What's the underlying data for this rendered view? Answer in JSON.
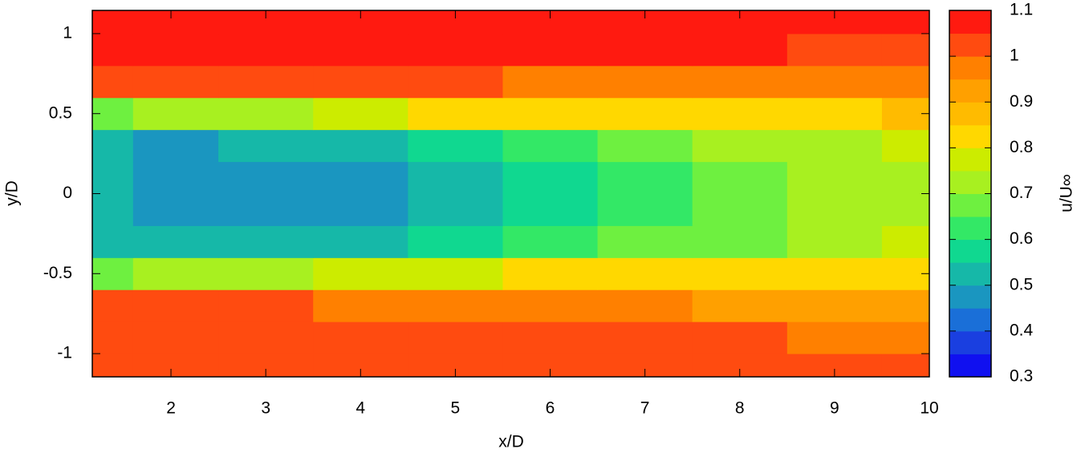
{
  "chart_data": {
    "type": "contour",
    "x_label": "x/D",
    "y_label": "y/D",
    "colorbar_label": "u/U∞",
    "x": [
      1.2,
      2,
      3,
      4,
      5,
      6,
      7,
      8,
      9,
      10
    ],
    "y": [
      -1.1,
      -0.9,
      -0.7,
      -0.5,
      -0.3,
      -0.1,
      0.1,
      0.3,
      0.5,
      0.7,
      0.9,
      1.1
    ],
    "z": [
      [
        1.04,
        1.04,
        1.04,
        1.04,
        1.03,
        1.02,
        1.02,
        1.02,
        1.04,
        1.04
      ],
      [
        1.03,
        1.04,
        1.04,
        1.04,
        1.03,
        1.02,
        1.01,
        1.0,
        0.99,
        0.98
      ],
      [
        1.0,
        1.01,
        1.0,
        0.99,
        0.98,
        0.96,
        0.95,
        0.94,
        0.93,
        0.92
      ],
      [
        0.66,
        0.7,
        0.74,
        0.77,
        0.79,
        0.8,
        0.81,
        0.82,
        0.82,
        0.83
      ],
      [
        0.52,
        0.5,
        0.5,
        0.52,
        0.55,
        0.6,
        0.65,
        0.69,
        0.72,
        0.75
      ],
      [
        0.5,
        0.47,
        0.47,
        0.48,
        0.5,
        0.55,
        0.6,
        0.65,
        0.7,
        0.73
      ],
      [
        0.5,
        0.49,
        0.47,
        0.47,
        0.5,
        0.55,
        0.6,
        0.66,
        0.7,
        0.73
      ],
      [
        0.52,
        0.48,
        0.51,
        0.53,
        0.56,
        0.61,
        0.66,
        0.7,
        0.73,
        0.76
      ],
      [
        0.66,
        0.7,
        0.74,
        0.77,
        0.8,
        0.81,
        0.82,
        0.83,
        0.84,
        0.85
      ],
      [
        1.04,
        1.03,
        1.02,
        1.01,
        1.0,
        0.99,
        0.98,
        0.97,
        0.96,
        0.95
      ],
      [
        1.07,
        1.07,
        1.07,
        1.07,
        1.06,
        1.06,
        1.05,
        1.05,
        1.04,
        1.03
      ],
      [
        1.08,
        1.08,
        1.08,
        1.08,
        1.08,
        1.08,
        1.08,
        1.08,
        1.07,
        1.07
      ]
    ],
    "levels": [
      0.3,
      0.35,
      0.4,
      0.45,
      0.5,
      0.55,
      0.6,
      0.65,
      0.7,
      0.75,
      0.8,
      0.85,
      0.9,
      0.95,
      1.0,
      1.05,
      1.1
    ],
    "colors": [
      "#1010f0",
      "#1a3fe0",
      "#1a6fd8",
      "#1a96c0",
      "#16b8a8",
      "#10d890",
      "#33e866",
      "#6ef040",
      "#a8f020",
      "#ccec00",
      "#ffd800",
      "#ffbb00",
      "#ffa000",
      "#ff8000",
      "#ff4b10",
      "#ff1a10"
    ],
    "xlim": [
      1.17,
      10
    ],
    "ylim": [
      -1.145,
      1.145
    ],
    "xticks": [
      2,
      3,
      4,
      5,
      6,
      7,
      8,
      9,
      10
    ],
    "yticks": [
      -1,
      -0.5,
      0,
      0.5,
      1
    ],
    "clim": [
      0.3,
      1.1
    ],
    "cticks": [
      0.3,
      0.4,
      0.5,
      0.6,
      0.7,
      0.8,
      0.9,
      1,
      1.1
    ]
  }
}
